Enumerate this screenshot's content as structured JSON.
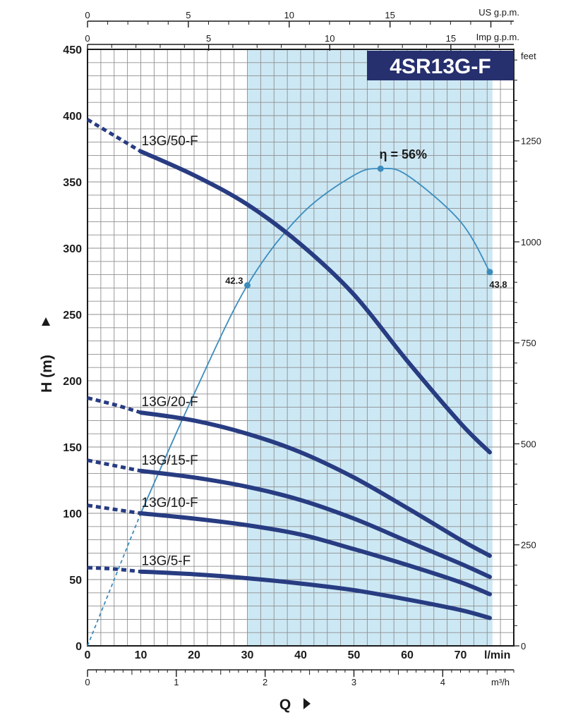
{
  "chart_data": {
    "type": "line",
    "title": "4SR13G-F",
    "xlabel": "Q",
    "ylabel": "H (m)",
    "xunit": "l/min",
    "xlim": [
      0,
      80
    ],
    "ylim": [
      0,
      450
    ],
    "x_ticks": [
      0,
      10,
      20,
      30,
      40,
      50,
      60,
      70
    ],
    "y_ticks": [
      0,
      50,
      100,
      150,
      200,
      250,
      300,
      350,
      400,
      450
    ],
    "operating_range": [
      30,
      76
    ],
    "series": [
      {
        "name": "13G/50-F",
        "x": [
          10,
          20,
          30,
          40,
          50,
          60,
          70,
          75.5
        ],
        "y": [
          373,
          355,
          333,
          303,
          265,
          215,
          168,
          146
        ],
        "extrapolated": {
          "x": [
            0,
            5,
            10
          ],
          "y": [
            397,
            385,
            373
          ]
        }
      },
      {
        "name": "13G/20-F",
        "x": [
          10,
          20,
          30,
          40,
          50,
          60,
          70,
          75.5
        ],
        "y": [
          176,
          170,
          160,
          146,
          127,
          104,
          80,
          68
        ],
        "extrapolated": {
          "x": [
            0,
            5,
            10
          ],
          "y": [
            187,
            182,
            176
          ]
        }
      },
      {
        "name": "13G/15-F",
        "x": [
          10,
          20,
          30,
          40,
          50,
          60,
          70,
          75.5
        ],
        "y": [
          132,
          127,
          120,
          110,
          96,
          79,
          62,
          52
        ],
        "extrapolated": {
          "x": [
            0,
            5,
            10
          ],
          "y": [
            140,
            136,
            132
          ]
        }
      },
      {
        "name": "13G/10-F",
        "x": [
          10,
          20,
          30,
          40,
          50,
          60,
          70,
          75.5
        ],
        "y": [
          100,
          96,
          91,
          84,
          73,
          61,
          48,
          39
        ],
        "extrapolated": {
          "x": [
            0,
            5,
            10
          ],
          "y": [
            106,
            103,
            100
          ]
        }
      },
      {
        "name": "13G/5-F",
        "x": [
          10,
          20,
          30,
          40,
          50,
          60,
          70,
          75.5
        ],
        "y": [
          56,
          54,
          51,
          47,
          42,
          35,
          27,
          21
        ],
        "extrapolated": {
          "x": [
            0,
            5,
            10
          ],
          "y": [
            59,
            58,
            56
          ]
        }
      }
    ],
    "efficiency": {
      "label": "η = 56%",
      "dashed": {
        "x": [
          0,
          5,
          10
        ],
        "y": [
          0,
          50,
          100
        ]
      },
      "x": [
        10,
        20,
        30,
        40,
        50,
        55,
        60,
        70,
        75.5
      ],
      "y": [
        100,
        190,
        272,
        325,
        355,
        360,
        355,
        320,
        282
      ],
      "points": [
        {
          "x": 30,
          "y": 272,
          "label": "42.3"
        },
        {
          "x": 55,
          "y": 360,
          "label": "56%"
        },
        {
          "x": 75.5,
          "y": 282,
          "label": "43.8"
        }
      ]
    },
    "secondary_axes": {
      "us_gpm": {
        "label": "US g.p.m.",
        "ticks": [
          "0",
          "5",
          "10",
          "15"
        ]
      },
      "imp_gpm": {
        "label": "Imp g.p.m.",
        "ticks": [
          "0",
          "5",
          "10",
          "15"
        ]
      },
      "feet": {
        "label": "feet",
        "ticks": [
          "0",
          "250",
          "500",
          "750",
          "1000",
          "1250"
        ]
      },
      "m3h": {
        "label": "m³/h",
        "ticks": [
          "0",
          "1",
          "2",
          "3",
          "4"
        ]
      }
    },
    "colors": {
      "curve": "#283c82",
      "efficiency": "#3c8cbe",
      "range_fill": "#cce8f4",
      "title_bg": "#26306e"
    }
  }
}
